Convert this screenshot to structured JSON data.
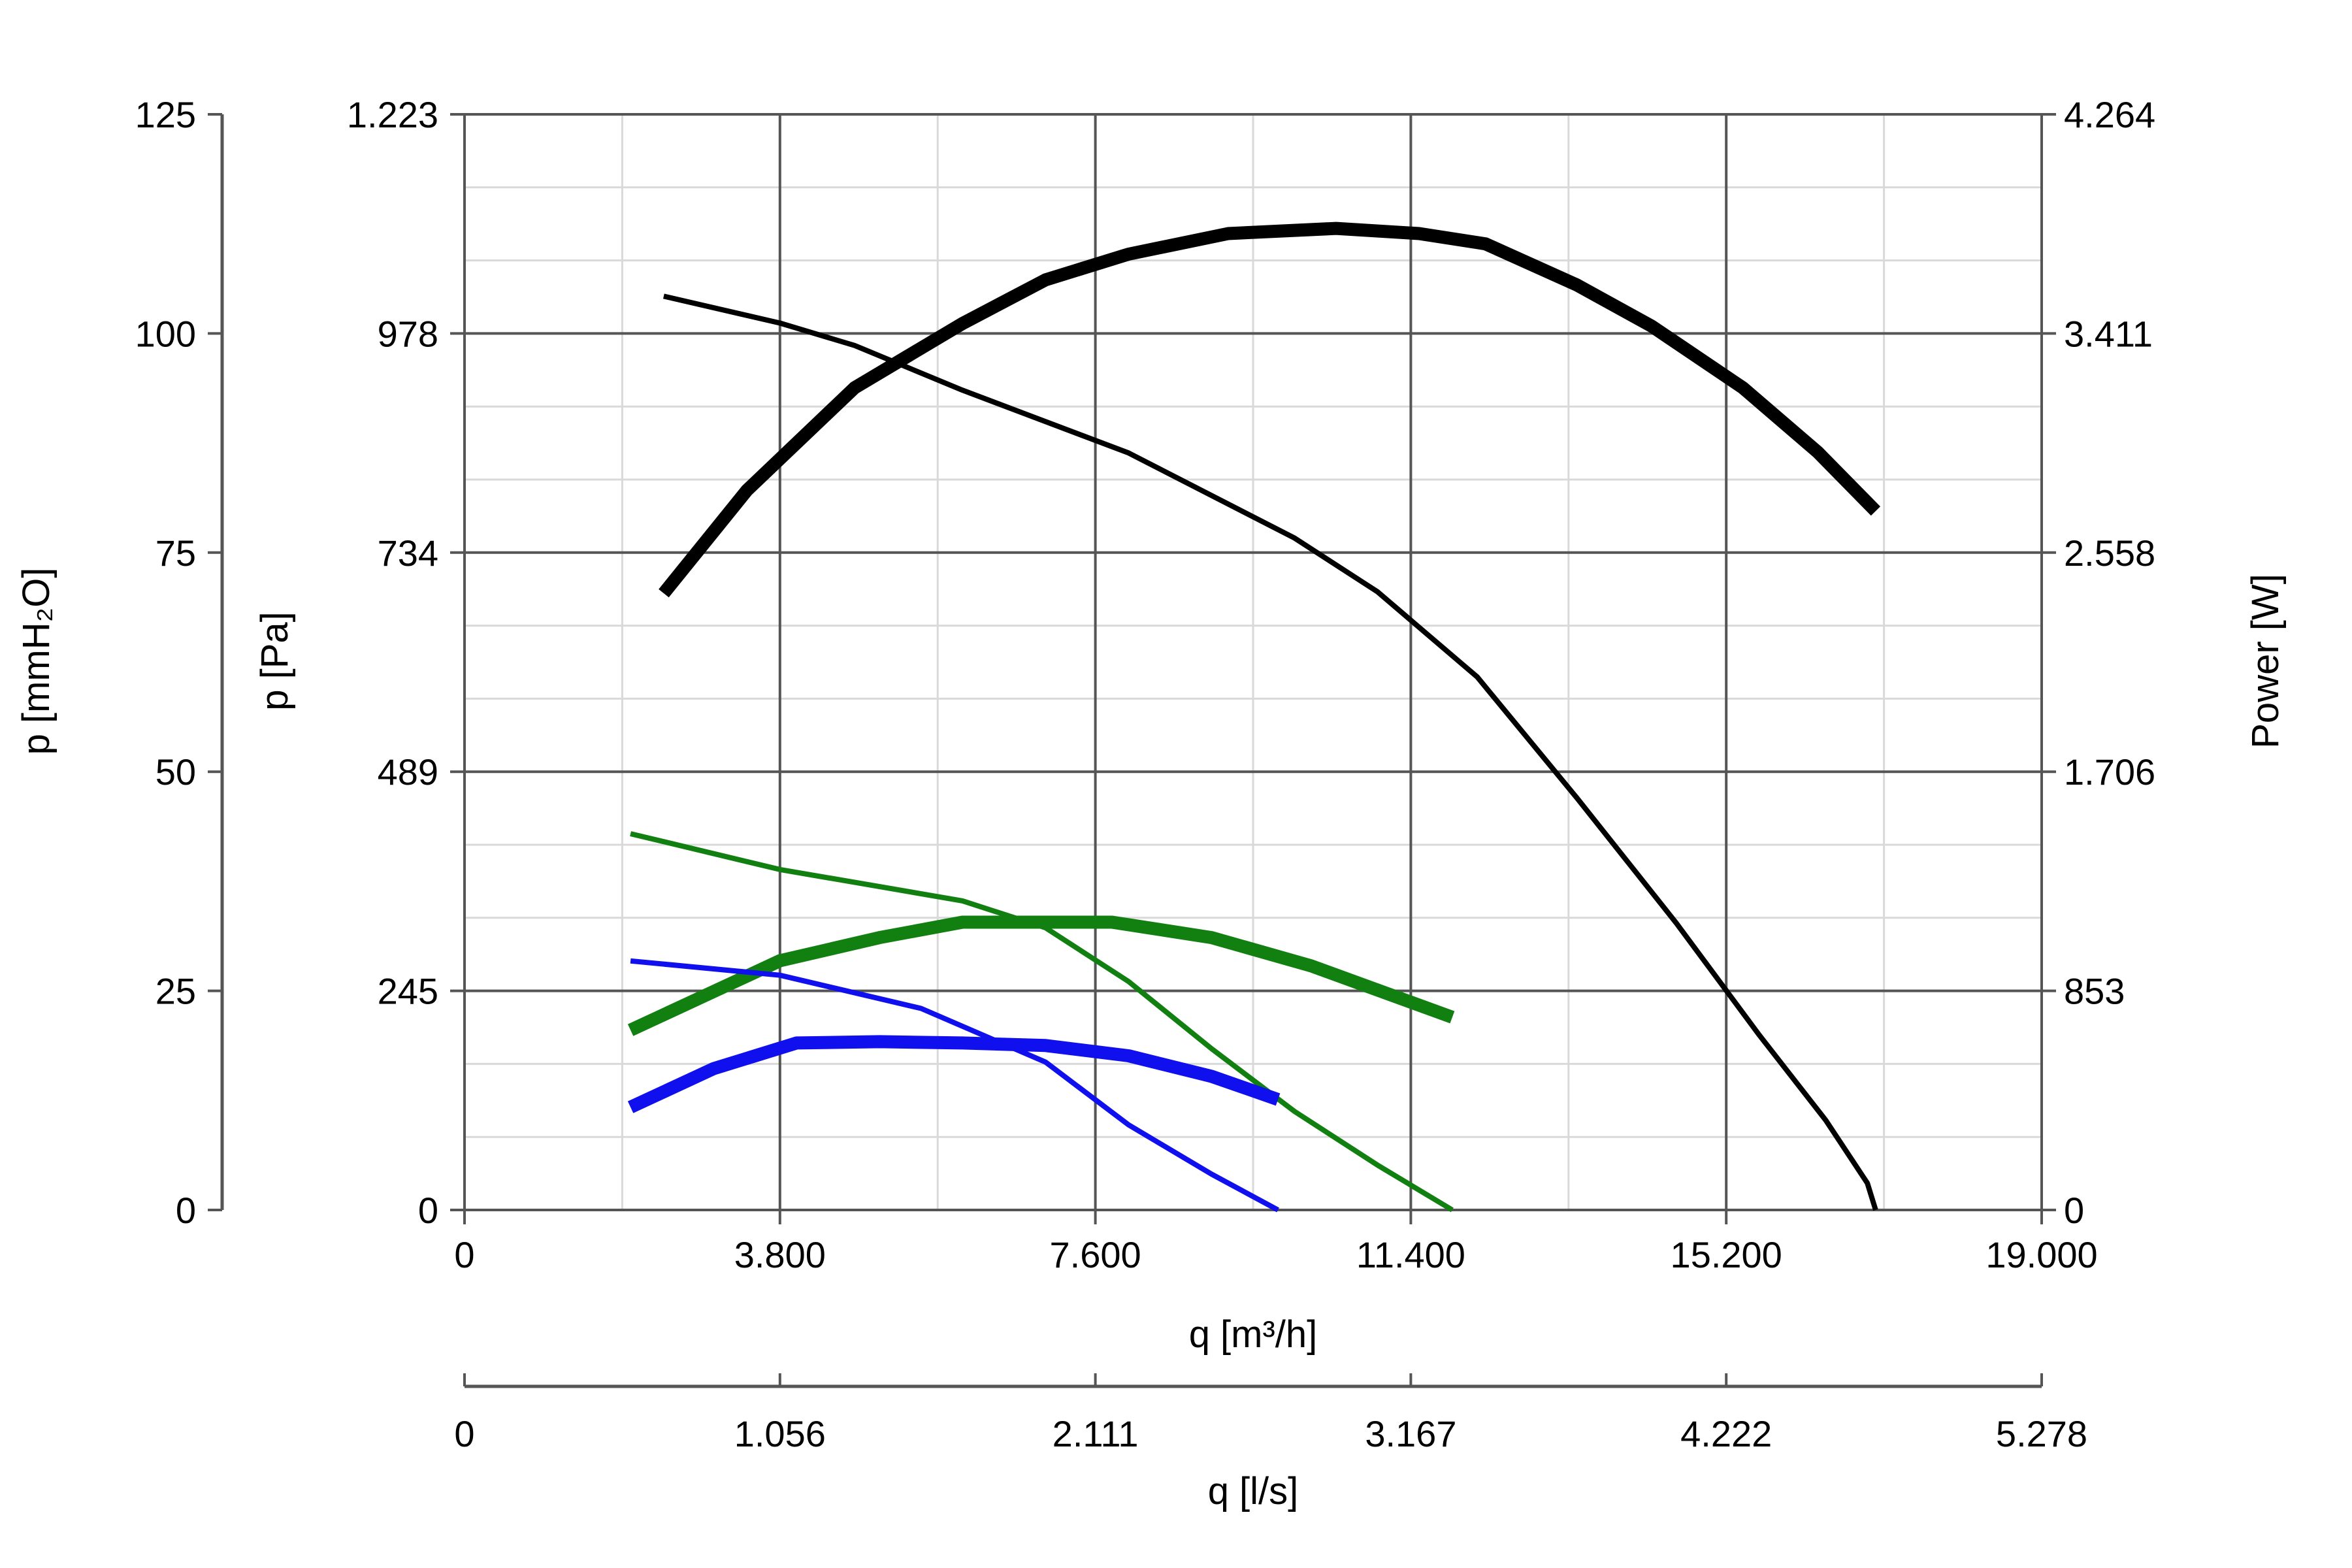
{
  "chart_data": {
    "type": "line",
    "x_axis": {
      "label": "q [m³/h]",
      "range": [
        0,
        19000
      ],
      "ticks": [
        0,
        3800,
        7600,
        11400,
        15200,
        19000
      ],
      "tick_labels": [
        "0",
        "3.800",
        "7.600",
        "11.400",
        "15.200",
        "19.000"
      ]
    },
    "x_axis_secondary": {
      "label": "q [l/s]",
      "range": [
        0,
        5.278
      ],
      "tick_labels": [
        "0",
        "1.056",
        "2.111",
        "3.167",
        "4.222",
        "5.278"
      ]
    },
    "y_axis_pressure": {
      "label": "p [Pa]",
      "range": [
        0,
        1223
      ],
      "tick_labels": [
        "0",
        "245",
        "489",
        "734",
        "978",
        "1.223"
      ]
    },
    "y_axis_pressure_secondary": {
      "label": "p [mmH₂O]",
      "range": [
        0,
        125
      ],
      "tick_labels": [
        "0",
        "25",
        "50",
        "75",
        "100",
        "125"
      ]
    },
    "y_axis_power": {
      "label": "Power [W]",
      "range": [
        0,
        4264
      ],
      "tick_labels": [
        "0",
        "853",
        "1.706",
        "2.558",
        "3.411",
        "4.264"
      ]
    },
    "grid": true,
    "colors": {
      "black": "#000000",
      "green": "#118011",
      "blue": "#1010ee"
    },
    "series": [
      {
        "color": "#000000",
        "kind": "pressure",
        "axis": "pressure",
        "x": [
          2400,
          3800,
          4700,
          6000,
          8000,
          10000,
          11000,
          12200,
          13400,
          14600,
          15600,
          16400,
          16900,
          17000
        ],
        "y": [
          1020,
          990,
          965,
          915,
          845,
          750,
          690,
          595,
          460,
          320,
          195,
          100,
          30,
          0
        ]
      },
      {
        "color": "#000000",
        "kind": "power",
        "axis": "power",
        "x": [
          2400,
          3400,
          4700,
          6000,
          7000,
          8000,
          9200,
          10500,
          11500,
          12300,
          13400,
          14300,
          15400,
          16300,
          17000
        ],
        "y": [
          2400,
          2800,
          3200,
          3450,
          3620,
          3720,
          3800,
          3820,
          3800,
          3760,
          3600,
          3440,
          3200,
          2950,
          2720
        ]
      },
      {
        "color": "#118011",
        "kind": "pressure",
        "axis": "pressure",
        "x": [
          2000,
          3800,
          6000,
          7000,
          8000,
          9000,
          10000,
          11000,
          11900
        ],
        "y": [
          420,
          380,
          345,
          315,
          255,
          180,
          110,
          50,
          0
        ]
      },
      {
        "color": "#118011",
        "kind": "power",
        "axis": "power",
        "x": [
          2000,
          3800,
          5000,
          6000,
          7000,
          7800,
          9000,
          10200,
          11900
        ],
        "y": [
          700,
          970,
          1060,
          1120,
          1120,
          1120,
          1060,
          950,
          750
        ]
      },
      {
        "color": "#1010ee",
        "kind": "pressure",
        "axis": "pressure",
        "x": [
          2000,
          3800,
          5500,
          7000,
          8000,
          9000,
          9800
        ],
        "y": [
          278,
          262,
          225,
          165,
          95,
          40,
          0
        ]
      },
      {
        "color": "#1010ee",
        "kind": "power",
        "axis": "power",
        "x": [
          2000,
          3000,
          4000,
          5000,
          6000,
          7000,
          8000,
          9000,
          9800
        ],
        "y": [
          400,
          550,
          650,
          655,
          650,
          640,
          600,
          520,
          430
        ]
      }
    ]
  }
}
